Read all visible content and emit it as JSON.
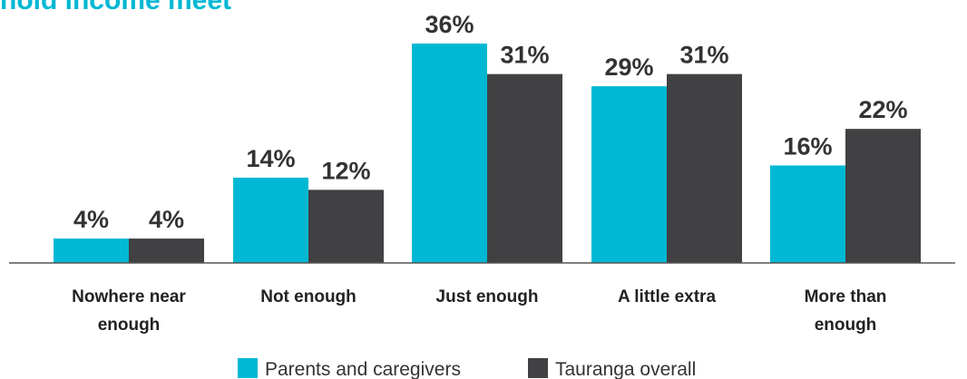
{
  "chart_data": {
    "type": "bar",
    "title": "hold income meet",
    "categories": [
      [
        "Nowhere near",
        "enough"
      ],
      [
        "Not enough"
      ],
      [
        "Just enough"
      ],
      [
        "A little extra"
      ],
      [
        "More than",
        "enough"
      ]
    ],
    "series": [
      {
        "name": "Parents and caregivers",
        "values": [
          4,
          14,
          36,
          29,
          16
        ],
        "labels": [
          "4%",
          "14%",
          "36%",
          "29%",
          "16%"
        ],
        "color": "#00b8d4"
      },
      {
        "name": "Tauranga overall",
        "values": [
          4,
          12,
          31,
          31,
          22
        ],
        "labels": [
          "4%",
          "12%",
          "31%",
          "31%",
          "22%"
        ],
        "color": "#414042"
      }
    ],
    "unit": "%",
    "ylim": [
      0,
      37
    ],
    "grid": false,
    "legend": "bottom-center",
    "title_color": "#00b8d4"
  }
}
